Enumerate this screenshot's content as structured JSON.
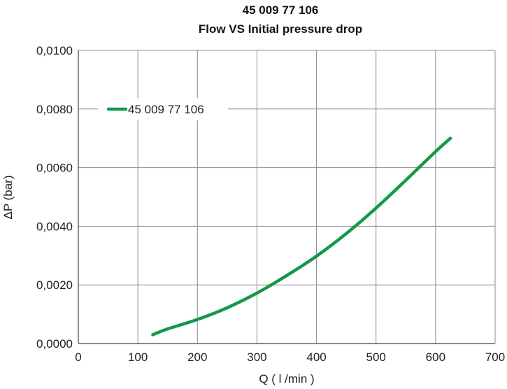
{
  "chart_data": {
    "type": "line",
    "title": "45 009 77 106",
    "subtitle": "Flow VS Initial pressure drop",
    "xlabel": "Q ( l /min )",
    "ylabel": "ΔP (bar)",
    "xlim": [
      0,
      700
    ],
    "ylim": [
      0,
      0.01
    ],
    "x_ticks": [
      0,
      100,
      200,
      300,
      400,
      500,
      600,
      700
    ],
    "x_tick_labels": [
      "0",
      "100",
      "200",
      "300",
      "400",
      "500",
      "600",
      "700"
    ],
    "y_ticks": [
      0,
      0.002,
      0.004,
      0.006,
      0.008,
      0.01
    ],
    "y_tick_labels": [
      "0,0000",
      "0,0020",
      "0,0040",
      "0,0060",
      "0,0080",
      "0,0100"
    ],
    "grid": true,
    "legend_position": "top-left",
    "series": [
      {
        "name": "45 009 77 106",
        "color": "#12994a",
        "x": [
          125,
          150,
          200,
          250,
          300,
          350,
          400,
          450,
          500,
          550,
          600,
          625
        ],
        "y": [
          0.0003,
          0.0005,
          0.00082,
          0.00122,
          0.00172,
          0.00232,
          0.00298,
          0.00375,
          0.00462,
          0.00557,
          0.00655,
          0.007
        ]
      }
    ]
  }
}
